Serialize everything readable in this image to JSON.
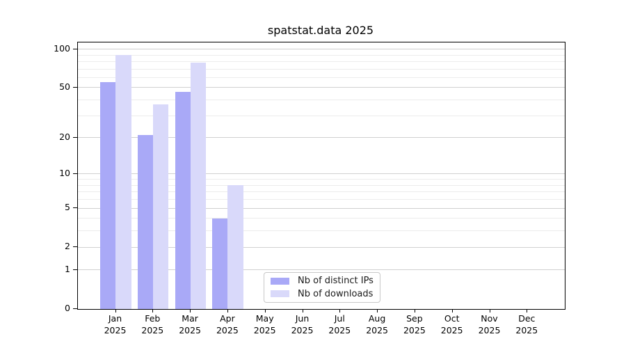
{
  "chart_data": {
    "type": "bar",
    "title": "spatstat.data 2025",
    "year_label": "2025",
    "categories": [
      "Jan",
      "Feb",
      "Mar",
      "Apr",
      "May",
      "Jun",
      "Jul",
      "Aug",
      "Sep",
      "Oct",
      "Nov",
      "Dec"
    ],
    "series": [
      {
        "name": "Nb of distinct IPs",
        "color": "#a9a9f7",
        "values": [
          55,
          21,
          46,
          4,
          null,
          null,
          null,
          null,
          null,
          null,
          null,
          null
        ]
      },
      {
        "name": "Nb of downloads",
        "color": "#d9d9fa",
        "values": [
          90,
          37,
          78,
          8,
          null,
          null,
          null,
          null,
          null,
          null,
          null,
          null
        ]
      }
    ],
    "xlabel": "",
    "ylabel": "",
    "y_axis": {
      "scale": "log10(1+v)",
      "ticks": [
        0,
        1,
        2,
        5,
        10,
        20,
        50,
        100
      ],
      "minor_gridlines": [
        3,
        4,
        6,
        7,
        8,
        9,
        30,
        40,
        60,
        70,
        80,
        90
      ],
      "max": 100
    },
    "grid": "on",
    "legend_position": "lower center"
  },
  "colors": {
    "bar_distinct_ips": "#a9a9f7",
    "bar_downloads": "#d9d9fa",
    "grid_major": "#d0d0d0",
    "grid_minor": "#ececec",
    "axis_frame": "#000000",
    "legend_border": "#c8c8c8",
    "text": "#000000"
  }
}
